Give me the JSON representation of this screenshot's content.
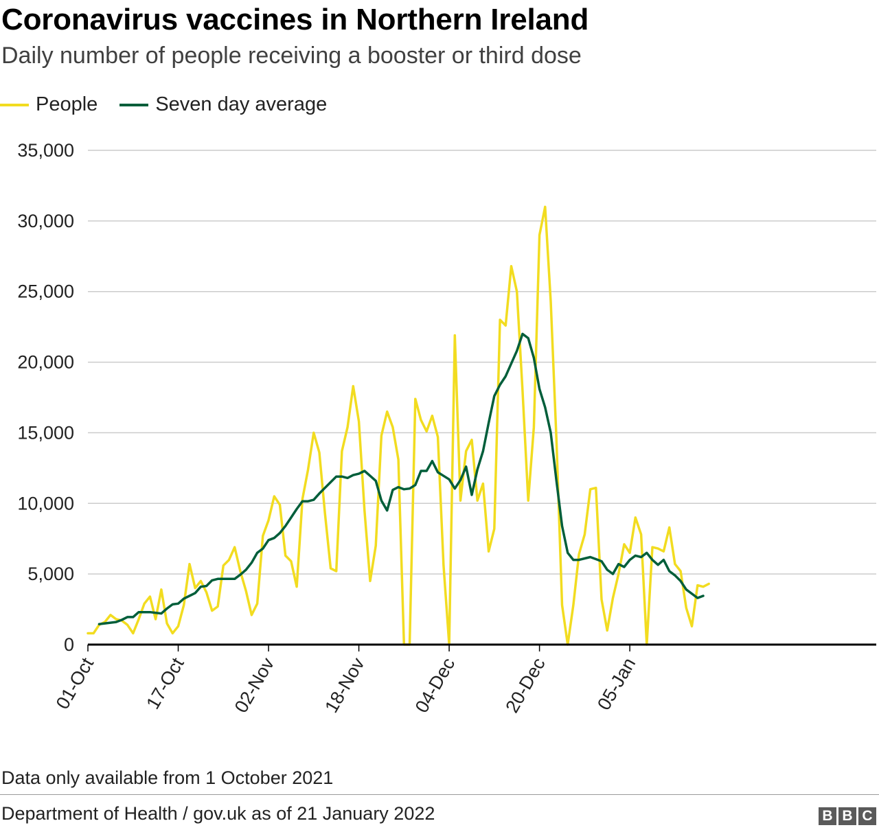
{
  "header": {
    "title": "Coronavirus vaccines in Northern Ireland",
    "subtitle": "Daily number of people receiving a booster or third dose"
  },
  "footer": {
    "note": "Data only available from 1 October 2021",
    "source": "Department of Health / gov.uk as of 21 January 2022",
    "logo_letters": [
      "B",
      "B",
      "C"
    ]
  },
  "colors": {
    "people": "#f2dc20",
    "average": "#005e3a",
    "grid": "#cccccc",
    "baseline": "#000000"
  },
  "chart_data": {
    "type": "line",
    "title": "Coronavirus vaccines in Northern Ireland",
    "subtitle": "Daily number of people receiving a booster or third dose",
    "xlabel": "",
    "ylabel": "",
    "ylim": [
      0,
      35000
    ],
    "yticks": [
      0,
      5000,
      10000,
      15000,
      20000,
      25000,
      30000,
      35000
    ],
    "ytick_labels": [
      "0",
      "5,000",
      "10,000",
      "15,000",
      "20,000",
      "25,000",
      "30,000",
      "35,000"
    ],
    "x_start": "2021-10-01",
    "xtick_labels": [
      {
        "day": 0,
        "label": "01-Oct"
      },
      {
        "day": 16,
        "label": "17-Oct"
      },
      {
        "day": 32,
        "label": "02-Nov"
      },
      {
        "day": 48,
        "label": "18-Nov"
      },
      {
        "day": 64,
        "label": "04-Dec"
      },
      {
        "day": 80,
        "label": "20-Dec"
      },
      {
        "day": 96,
        "label": "05-Jan"
      }
    ],
    "grid": true,
    "legend": "top-left",
    "series": [
      {
        "name": "People",
        "start_day": 0,
        "values": [
          800,
          800,
          1400,
          1600,
          2100,
          1800,
          1700,
          1400,
          800,
          1800,
          2900,
          3400,
          1800,
          3900,
          1500,
          800,
          1300,
          2800,
          5700,
          4000,
          4500,
          3700,
          2400,
          2700,
          5600,
          6000,
          6900,
          5200,
          3800,
          2100,
          2900,
          7700,
          8800,
          10500,
          9900,
          6300,
          5900,
          4100,
          10300,
          12400,
          15000,
          13600,
          9300,
          5400,
          5200,
          13700,
          15400,
          18300,
          15800,
          9500,
          4500,
          7000,
          14800,
          16500,
          15400,
          13100,
          0,
          0,
          17400,
          15900,
          15100,
          16200,
          14700,
          5600,
          0,
          21900,
          10200,
          13700,
          14500,
          10200,
          11400,
          6600,
          8200,
          23000,
          22600,
          26800,
          25000,
          18000,
          10200,
          15400,
          29000,
          31000,
          24300,
          14500,
          2800,
          0,
          2800,
          6400,
          7800,
          11000,
          11100,
          3200,
          1000,
          3300,
          5000,
          7100,
          6500,
          9000,
          7800,
          0,
          6900,
          6800,
          6600,
          8300,
          5700,
          5200,
          2600,
          1300,
          4200,
          4100,
          4300
        ]
      },
      {
        "name": "Seven day average",
        "start_day": 2,
        "values": [
          1450,
          1500,
          1550,
          1600,
          1750,
          1950,
          1950,
          2300,
          2300,
          2300,
          2250,
          2200,
          2550,
          2850,
          2900,
          3250,
          3450,
          3650,
          4100,
          4150,
          4550,
          4650,
          4650,
          4650,
          4650,
          4950,
          5300,
          5800,
          6500,
          6800,
          7400,
          7550,
          7900,
          8400,
          9000,
          9600,
          10150,
          10150,
          10250,
          10700,
          11100,
          11500,
          11900,
          11900,
          11800,
          12000,
          12100,
          12300,
          11950,
          11600,
          10200,
          9500,
          10950,
          11150,
          11000,
          11050,
          11300,
          12300,
          12300,
          13000,
          12200,
          11950,
          11700,
          11050,
          11650,
          12600,
          10600,
          12400,
          13700,
          15700,
          17600,
          18400,
          19000,
          19900,
          20800,
          22000,
          21700,
          20300,
          18100,
          16800,
          15000,
          11600,
          8400,
          6500,
          6000,
          6000,
          6100,
          6200,
          6050,
          5900,
          5300,
          5000,
          5700,
          5500,
          6000,
          6300,
          6200,
          6500,
          6000,
          5650,
          6000,
          5200,
          4900,
          4500,
          3900,
          3600,
          3300,
          3450
        ]
      }
    ]
  }
}
